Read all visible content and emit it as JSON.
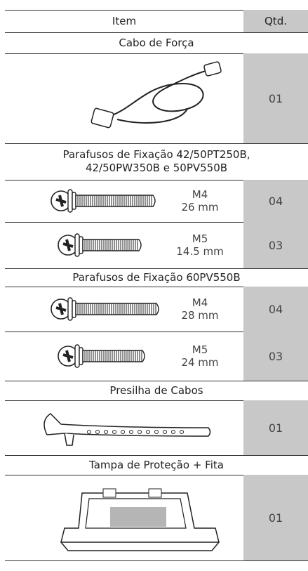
{
  "header": {
    "item": "Item",
    "qty": "Qtd."
  },
  "sections": [
    {
      "title": [
        "Cabo de Força"
      ],
      "rows": [
        {
          "spec": [],
          "qty": "01"
        }
      ]
    },
    {
      "title": [
        "Parafusos de Fixação 42/50PT250B,",
        "42/50PW350B e 50PV550B"
      ],
      "rows": [
        {
          "spec": [
            "M4",
            "26 mm"
          ],
          "qty": "04"
        },
        {
          "spec": [
            "M5",
            "14.5 mm"
          ],
          "qty": "03"
        }
      ]
    },
    {
      "title": [
        "Parafusos de Fixação 60PV550B"
      ],
      "rows": [
        {
          "spec": [
            "M4",
            "28 mm"
          ],
          "qty": "04"
        },
        {
          "spec": [
            "M5",
            "24 mm"
          ],
          "qty": "03"
        }
      ]
    },
    {
      "title": [
        "Presilha de Cabos"
      ],
      "rows": [
        {
          "spec": [],
          "qty": "01"
        }
      ]
    },
    {
      "title": [
        "Tampa de Proteção + Fita"
      ],
      "rows": [
        {
          "spec": [],
          "qty": "01"
        }
      ]
    }
  ]
}
